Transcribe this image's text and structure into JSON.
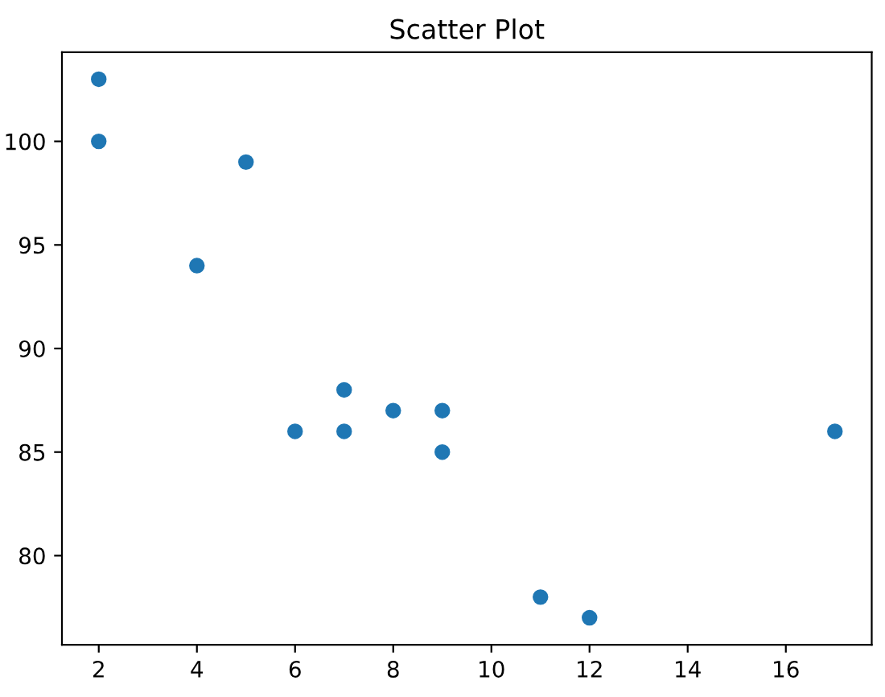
{
  "chart_data": {
    "type": "scatter",
    "title": "Scatter Plot",
    "x": [
      5,
      7,
      8,
      7,
      2,
      17,
      2,
      9,
      4,
      11,
      12,
      9,
      6
    ],
    "series": [
      {
        "color": "#1f77b4",
        "values": [
          99,
          86,
          87,
          88,
          100,
          86,
          103,
          87,
          94,
          78,
          77,
          85,
          86
        ]
      }
    ],
    "xlim": [
      1.25,
      17.75
    ],
    "ylim": [
      75.7,
      104.3
    ],
    "xticks": [
      2,
      4,
      6,
      8,
      10,
      12,
      14,
      16
    ],
    "yticks": [
      80,
      85,
      90,
      95,
      100
    ],
    "grid": false,
    "marker": "circle"
  }
}
